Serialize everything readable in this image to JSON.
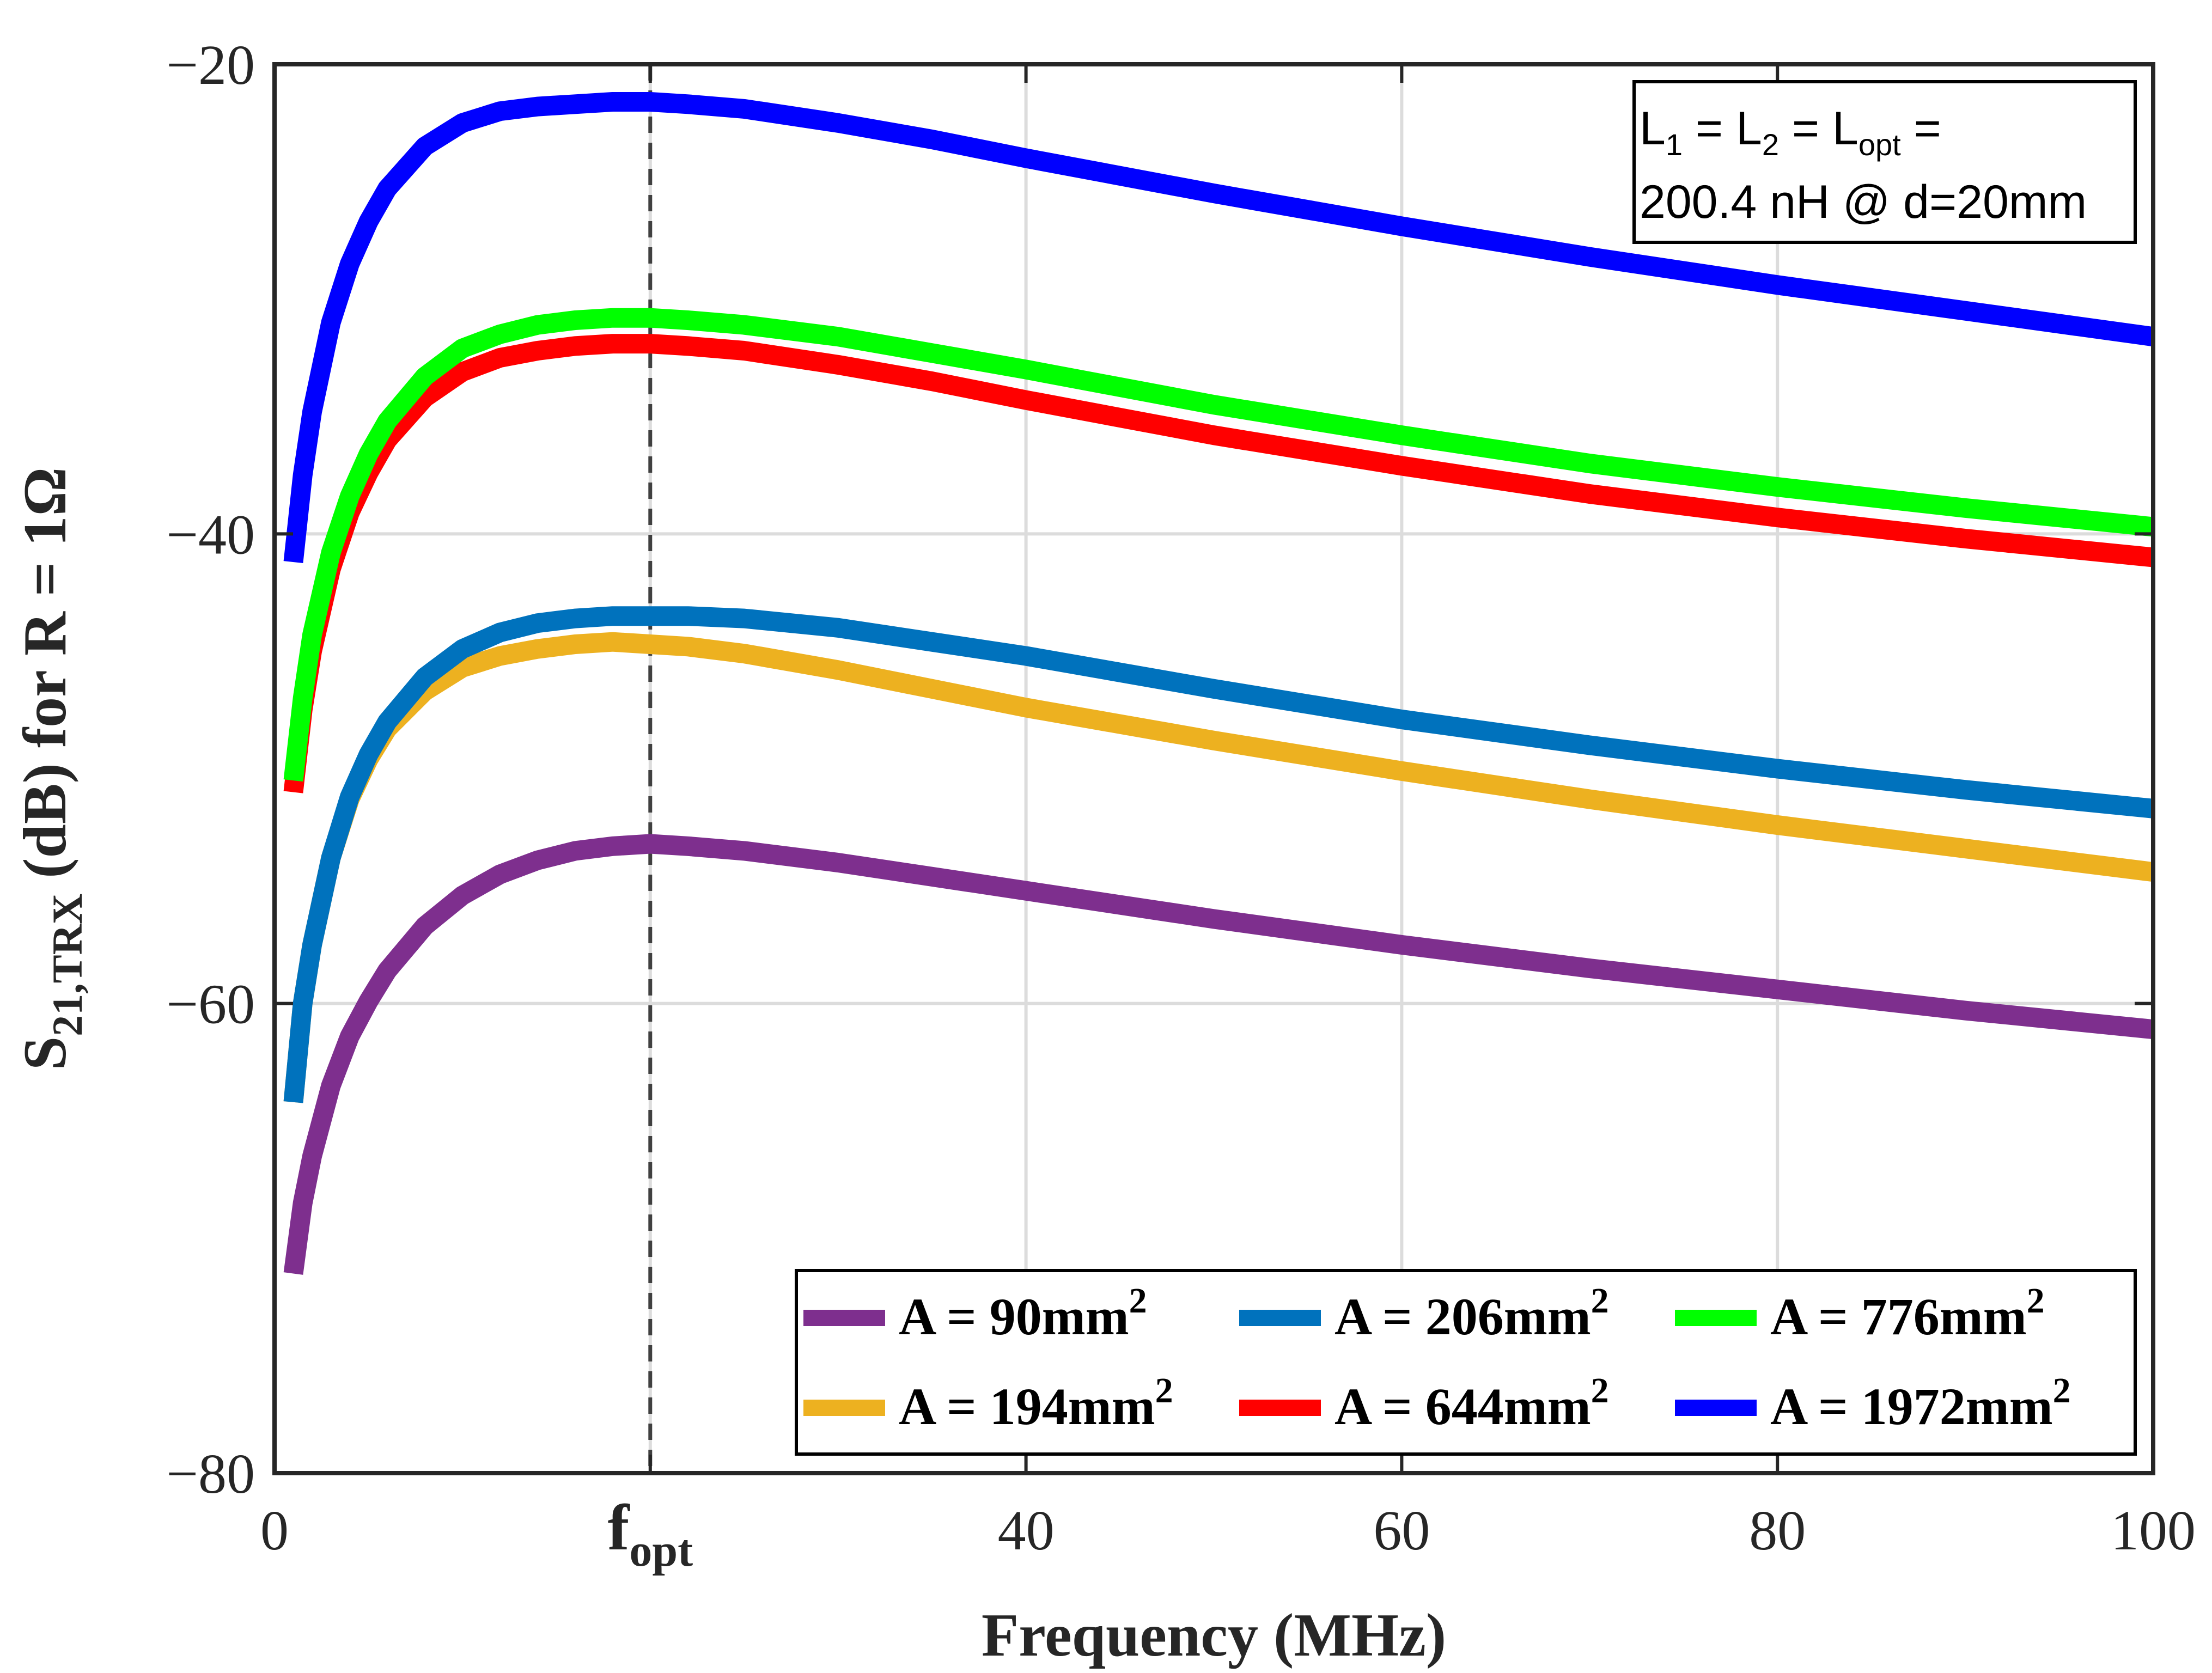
{
  "chart_data": {
    "type": "line",
    "xlabel": "Frequency (MHz)",
    "ylabel": {
      "main": "S",
      "sub": "21,TRX",
      "rest": " (dB) for R = 1Ω"
    },
    "xlim": [
      0,
      100
    ],
    "ylim": [
      -80,
      -20
    ],
    "x_ticks": [
      {
        "value": 0,
        "label": "0"
      },
      {
        "value": 20,
        "label": "f",
        "sub": "opt"
      },
      {
        "value": 40,
        "label": "40"
      },
      {
        "value": 60,
        "label": "60"
      },
      {
        "value": 80,
        "label": "80"
      },
      {
        "value": 100,
        "label": "100"
      }
    ],
    "y_ticks": [
      {
        "value": -20,
        "label": "−20"
      },
      {
        "value": -40,
        "label": "−40"
      },
      {
        "value": -60,
        "label": "−60"
      },
      {
        "value": -80,
        "label": "−80"
      }
    ],
    "grid": true,
    "reference_line": {
      "x": 20,
      "style": "dashed"
    },
    "annotation": {
      "line1": [
        "L",
        "1",
        " = L",
        "2",
        " = L",
        "opt",
        " ="
      ],
      "line2": "200.4 nH @ d=20mm"
    },
    "legend": {
      "placement": "bottom-right",
      "columns": 3
    },
    "series": [
      {
        "name_pre": "A = 90mm",
        "name_sup": "2",
        "color": "#7E2F8E",
        "points": [
          [
            1,
            -71.5
          ],
          [
            1.5,
            -68.5
          ],
          [
            2,
            -66.5
          ],
          [
            3,
            -63.5
          ],
          [
            4,
            -61.4
          ],
          [
            5,
            -59.9
          ],
          [
            6,
            -58.6
          ],
          [
            8,
            -56.7
          ],
          [
            10,
            -55.4
          ],
          [
            12,
            -54.5
          ],
          [
            14,
            -53.9
          ],
          [
            16,
            -53.5
          ],
          [
            18,
            -53.3
          ],
          [
            20,
            -53.2
          ],
          [
            22,
            -53.3
          ],
          [
            25,
            -53.5
          ],
          [
            30,
            -54.0
          ],
          [
            35,
            -54.6
          ],
          [
            40,
            -55.2
          ],
          [
            50,
            -56.4
          ],
          [
            60,
            -57.5
          ],
          [
            70,
            -58.5
          ],
          [
            80,
            -59.4
          ],
          [
            90,
            -60.3
          ],
          [
            100,
            -61.1
          ]
        ]
      },
      {
        "name_pre": "A = 194mm",
        "name_sup": "2",
        "color": "#EDB120",
        "points": [
          [
            1,
            -64.2
          ],
          [
            1.5,
            -60
          ],
          [
            2,
            -57.5
          ],
          [
            3,
            -53.8
          ],
          [
            4,
            -51.3
          ],
          [
            5,
            -49.6
          ],
          [
            6,
            -48.3
          ],
          [
            8,
            -46.7
          ],
          [
            10,
            -45.7
          ],
          [
            12,
            -45.2
          ],
          [
            14,
            -44.9
          ],
          [
            16,
            -44.7
          ],
          [
            18,
            -44.6
          ],
          [
            20,
            -44.7
          ],
          [
            22,
            -44.8
          ],
          [
            25,
            -45.1
          ],
          [
            30,
            -45.8
          ],
          [
            35,
            -46.6
          ],
          [
            40,
            -47.4
          ],
          [
            50,
            -48.8
          ],
          [
            60,
            -50.1
          ],
          [
            70,
            -51.3
          ],
          [
            80,
            -52.4
          ],
          [
            90,
            -53.4
          ],
          [
            100,
            -54.4
          ]
        ]
      },
      {
        "name_pre": "A = 206mm",
        "name_sup": "2",
        "color": "#0072BD",
        "points": [
          [
            1,
            -64.2
          ],
          [
            1.5,
            -60
          ],
          [
            2,
            -57.5
          ],
          [
            3,
            -53.8
          ],
          [
            4,
            -51.2
          ],
          [
            5,
            -49.4
          ],
          [
            6,
            -48
          ],
          [
            8,
            -46.1
          ],
          [
            10,
            -44.9
          ],
          [
            12,
            -44.2
          ],
          [
            14,
            -43.8
          ],
          [
            16,
            -43.6
          ],
          [
            18,
            -43.5
          ],
          [
            20,
            -43.5
          ],
          [
            22,
            -43.5
          ],
          [
            25,
            -43.6
          ],
          [
            30,
            -44.0
          ],
          [
            35,
            -44.6
          ],
          [
            40,
            -45.2
          ],
          [
            50,
            -46.6
          ],
          [
            60,
            -47.9
          ],
          [
            70,
            -49.0
          ],
          [
            80,
            -50.0
          ],
          [
            90,
            -50.9
          ],
          [
            100,
            -51.7
          ]
        ]
      },
      {
        "name_pre": "A = 644mm",
        "name_sup": "2",
        "color": "#FF0000",
        "points": [
          [
            1,
            -51.0
          ],
          [
            1.5,
            -47.5
          ],
          [
            2,
            -45
          ],
          [
            3,
            -41.5
          ],
          [
            4,
            -39.1
          ],
          [
            5,
            -37.4
          ],
          [
            6,
            -36.0
          ],
          [
            8,
            -34.2
          ],
          [
            10,
            -33.1
          ],
          [
            12,
            -32.5
          ],
          [
            14,
            -32.2
          ],
          [
            16,
            -32.0
          ],
          [
            18,
            -31.9
          ],
          [
            20,
            -31.9
          ],
          [
            22,
            -32.0
          ],
          [
            25,
            -32.2
          ],
          [
            30,
            -32.8
          ],
          [
            35,
            -33.5
          ],
          [
            40,
            -34.3
          ],
          [
            50,
            -35.8
          ],
          [
            60,
            -37.1
          ],
          [
            70,
            -38.3
          ],
          [
            80,
            -39.3
          ],
          [
            90,
            -40.2
          ],
          [
            100,
            -41.0
          ]
        ]
      },
      {
        "name_pre": "A = 776mm",
        "name_sup": "2",
        "color": "#00FF00",
        "points": [
          [
            1,
            -50.5
          ],
          [
            1.5,
            -47
          ],
          [
            2,
            -44.3
          ],
          [
            3,
            -40.8
          ],
          [
            4,
            -38.4
          ],
          [
            5,
            -36.6
          ],
          [
            6,
            -35.2
          ],
          [
            8,
            -33.3
          ],
          [
            10,
            -32.1
          ],
          [
            12,
            -31.5
          ],
          [
            14,
            -31.1
          ],
          [
            16,
            -30.9
          ],
          [
            18,
            -30.8
          ],
          [
            20,
            -30.8
          ],
          [
            22,
            -30.9
          ],
          [
            25,
            -31.1
          ],
          [
            30,
            -31.6
          ],
          [
            35,
            -32.3
          ],
          [
            40,
            -33.0
          ],
          [
            50,
            -34.5
          ],
          [
            60,
            -35.8
          ],
          [
            70,
            -37.0
          ],
          [
            80,
            -38.0
          ],
          [
            90,
            -38.9
          ],
          [
            100,
            -39.7
          ]
        ]
      },
      {
        "name_pre": "A = 1972mm",
        "name_sup": "2",
        "color": "#0000FF",
        "points": [
          [
            1,
            -41.2
          ],
          [
            1.5,
            -37.5
          ],
          [
            2,
            -34.8
          ],
          [
            3,
            -31.0
          ],
          [
            4,
            -28.5
          ],
          [
            5,
            -26.7
          ],
          [
            6,
            -25.3
          ],
          [
            8,
            -23.5
          ],
          [
            10,
            -22.5
          ],
          [
            12,
            -22.0
          ],
          [
            14,
            -21.8
          ],
          [
            16,
            -21.7
          ],
          [
            18,
            -21.6
          ],
          [
            20,
            -21.6
          ],
          [
            22,
            -21.7
          ],
          [
            25,
            -21.9
          ],
          [
            30,
            -22.5
          ],
          [
            35,
            -23.2
          ],
          [
            40,
            -24.0
          ],
          [
            50,
            -25.5
          ],
          [
            60,
            -26.9
          ],
          [
            70,
            -28.2
          ],
          [
            80,
            -29.4
          ],
          [
            90,
            -30.5
          ],
          [
            100,
            -31.6
          ]
        ]
      }
    ]
  }
}
